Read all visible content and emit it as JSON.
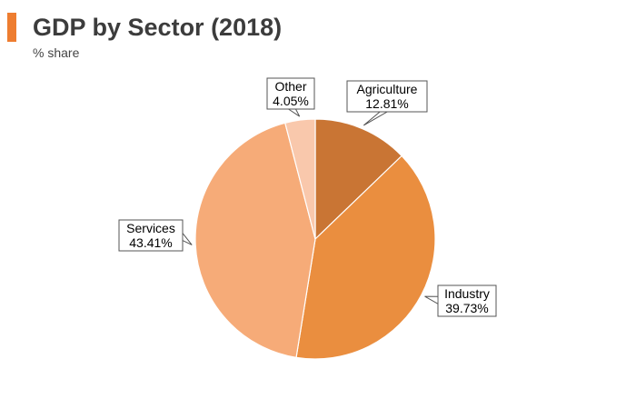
{
  "colors": {
    "accent": "#ee7d30"
  },
  "chart_data": {
    "type": "pie",
    "title": "GDP by Sector (2018)",
    "subtitle": "% share",
    "start": "12 o'clock, clockwise",
    "slices": [
      {
        "label": "Agriculture",
        "value": 12.81,
        "value_label": "12.81%",
        "color": "#c97534"
      },
      {
        "label": "Industry",
        "value": 39.73,
        "value_label": "39.73%",
        "color": "#ea8e3f"
      },
      {
        "label": "Services",
        "value": 43.41,
        "value_label": "43.41%",
        "color": "#f6ab78"
      },
      {
        "label": "Other",
        "value": 4.05,
        "value_label": "4.05%",
        "color": "#f9c8ac"
      }
    ]
  }
}
